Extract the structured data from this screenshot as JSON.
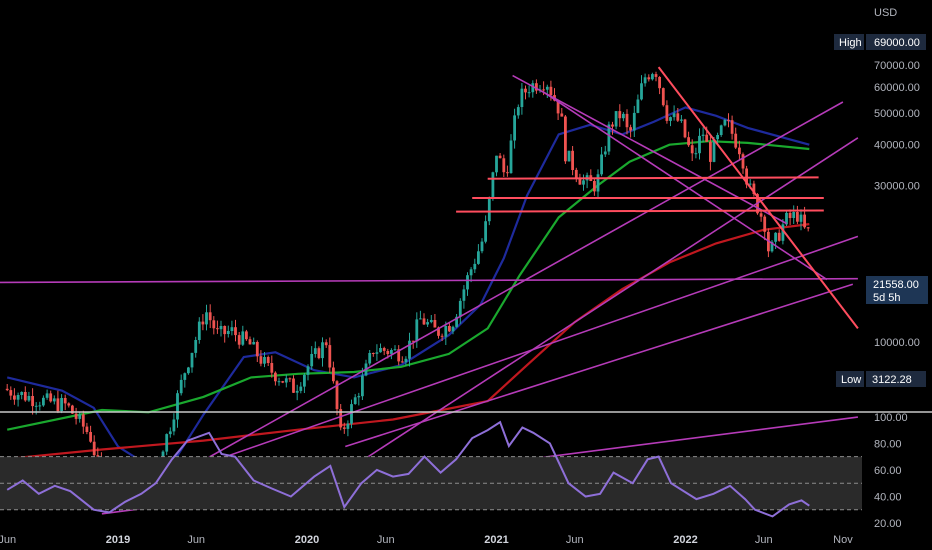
{
  "chart_data": {
    "type": "candlestick",
    "currency": "USD",
    "y_scale": "log",
    "price_ticks": [
      {
        "value": 70000,
        "label": "70000.00"
      },
      {
        "value": 60000,
        "label": "60000.00"
      },
      {
        "value": 50000,
        "label": "50000.00"
      },
      {
        "value": 40000,
        "label": "40000.00"
      },
      {
        "value": 30000,
        "label": "30000.00"
      },
      {
        "value": 10000,
        "label": "10000.00"
      }
    ],
    "markers": {
      "high": {
        "label": "High",
        "value_label": "69000.00",
        "value": 69000
      },
      "low": {
        "label": "Low",
        "value_label": "3122.28",
        "value": 3122.28
      },
      "last": {
        "value_label": "21558.00",
        "value": 21558,
        "countdown": "5d 5h"
      }
    },
    "x_ticks": [
      {
        "date": "2018-06-01",
        "label": "Jun",
        "year": false
      },
      {
        "date": "2019-01-01",
        "label": "2019",
        "year": true
      },
      {
        "date": "2019-06-01",
        "label": "Jun",
        "year": false
      },
      {
        "date": "2020-01-01",
        "label": "2020",
        "year": true
      },
      {
        "date": "2020-06-01",
        "label": "Jun",
        "year": false
      },
      {
        "date": "2021-01-01",
        "label": "2021",
        "year": true
      },
      {
        "date": "2021-06-01",
        "label": "Jun",
        "year": false
      },
      {
        "date": "2022-01-01",
        "label": "2022",
        "year": true
      },
      {
        "date": "2022-06-01",
        "label": "Jun",
        "year": false
      },
      {
        "date": "2022-11-01",
        "label": "Nov",
        "year": false
      }
    ],
    "price_anchors": [
      [
        "2018-06-01",
        7200
      ],
      [
        "2018-08-01",
        6700
      ],
      [
        "2018-10-01",
        6400
      ],
      [
        "2018-11-15",
        5200
      ],
      [
        "2018-12-15",
        3400
      ],
      [
        "2019-02-01",
        3500
      ],
      [
        "2019-03-15",
        4000
      ],
      [
        "2019-04-15",
        5300
      ],
      [
        "2019-05-15",
        8000
      ],
      [
        "2019-06-26",
        12500
      ],
      [
        "2019-07-20",
        10500
      ],
      [
        "2019-08-15",
        10800
      ],
      [
        "2019-09-20",
        9800
      ],
      [
        "2019-10-25",
        8300
      ],
      [
        "2019-12-15",
        7200
      ],
      [
        "2020-01-15",
        8700
      ],
      [
        "2020-02-15",
        10100
      ],
      [
        "2020-03-13",
        5200
      ],
      [
        "2020-04-15",
        7000
      ],
      [
        "2020-05-15",
        9500
      ],
      [
        "2020-06-15",
        9400
      ],
      [
        "2020-07-15",
        9200
      ],
      [
        "2020-08-15",
        11800
      ],
      [
        "2020-09-15",
        10700
      ],
      [
        "2020-10-15",
        11500
      ],
      [
        "2020-11-15",
        16000
      ],
      [
        "2020-12-15",
        21000
      ],
      [
        "2021-01-08",
        38000
      ],
      [
        "2021-01-25",
        32000
      ],
      [
        "2021-02-20",
        55000
      ],
      [
        "2021-03-13",
        60500
      ],
      [
        "2021-04-14",
        63000
      ],
      [
        "2021-05-12",
        50000
      ],
      [
        "2021-05-20",
        38000
      ],
      [
        "2021-06-22",
        31000
      ],
      [
        "2021-07-20",
        30000
      ],
      [
        "2021-08-15",
        46000
      ],
      [
        "2021-09-07",
        50000
      ],
      [
        "2021-09-21",
        42000
      ],
      [
        "2021-10-20",
        64000
      ],
      [
        "2021-11-10",
        69000
      ],
      [
        "2021-12-04",
        49000
      ],
      [
        "2021-12-28",
        47000
      ],
      [
        "2022-01-22",
        36000
      ],
      [
        "2022-02-10",
        44000
      ],
      [
        "2022-02-24",
        37000
      ],
      [
        "2022-03-28",
        47000
      ],
      [
        "2022-04-26",
        38000
      ],
      [
        "2022-05-09",
        30000
      ],
      [
        "2022-06-13",
        22500
      ],
      [
        "2022-06-18",
        18500
      ],
      [
        "2022-07-20",
        23500
      ],
      [
        "2022-08-13",
        24500
      ],
      [
        "2022-08-28",
        21558
      ]
    ],
    "moving_averages": [
      {
        "color": "#1e2a9c",
        "points": [
          [
            "2018-06-01",
            7800
          ],
          [
            "2018-09-15",
            7100
          ],
          [
            "2018-11-15",
            6300
          ],
          [
            "2019-01-01",
            4800
          ],
          [
            "2019-04-01",
            3900
          ],
          [
            "2019-06-15",
            6000
          ],
          [
            "2019-09-01",
            9000
          ],
          [
            "2019-11-01",
            9300
          ],
          [
            "2020-01-15",
            8200
          ],
          [
            "2020-04-01",
            7800
          ],
          [
            "2020-07-01",
            8500
          ],
          [
            "2020-10-01",
            10500
          ],
          [
            "2020-12-01",
            13000
          ],
          [
            "2021-01-15",
            18000
          ],
          [
            "2021-03-01",
            28000
          ],
          [
            "2021-05-01",
            43000
          ],
          [
            "2021-07-01",
            46000
          ],
          [
            "2021-09-01",
            43000
          ],
          [
            "2021-11-01",
            47000
          ],
          [
            "2022-01-01",
            52000
          ],
          [
            "2022-03-01",
            49000
          ],
          [
            "2022-05-01",
            45000
          ],
          [
            "2022-08-28",
            40000
          ]
        ]
      },
      {
        "color": "#1aa82e",
        "points": [
          [
            "2018-06-01",
            5400
          ],
          [
            "2018-12-01",
            6200
          ],
          [
            "2019-03-01",
            6100
          ],
          [
            "2019-06-15",
            6800
          ],
          [
            "2019-09-15",
            7800
          ],
          [
            "2019-12-15",
            8000
          ],
          [
            "2020-04-01",
            8100
          ],
          [
            "2020-07-01",
            8400
          ],
          [
            "2020-10-01",
            9200
          ],
          [
            "2020-12-15",
            11000
          ],
          [
            "2021-02-15",
            16000
          ],
          [
            "2021-05-01",
            24000
          ],
          [
            "2021-07-15",
            30000
          ],
          [
            "2021-09-15",
            35500
          ],
          [
            "2021-12-01",
            40000
          ],
          [
            "2022-02-15",
            41000
          ],
          [
            "2022-05-01",
            40500
          ],
          [
            "2022-08-28",
            38800
          ]
        ]
      },
      {
        "color": "#c0181f",
        "points": [
          [
            "2018-06-01",
            4400
          ],
          [
            "2018-12-01",
            4700
          ],
          [
            "2019-06-15",
            5000
          ],
          [
            "2019-12-15",
            5400
          ],
          [
            "2020-06-15",
            5800
          ],
          [
            "2020-12-15",
            6600
          ],
          [
            "2021-03-01",
            8500
          ],
          [
            "2021-06-01",
            11500
          ],
          [
            "2021-09-01",
            14500
          ],
          [
            "2021-12-01",
            17500
          ],
          [
            "2022-03-01",
            20000
          ],
          [
            "2022-06-01",
            22000
          ],
          [
            "2022-08-28",
            22900
          ]
        ]
      }
    ],
    "trend_lines": [
      {
        "color": "#b53bb8",
        "from": [
          "2018-05-15",
          15200
        ],
        "to": [
          "2022-11-30",
          15600
        ]
      },
      {
        "color": "#b53bb8",
        "from": [
          "2018-12-01",
          2990
        ],
        "to": [
          "2022-11-30",
          5900
        ]
      },
      {
        "color": "#b53bb8",
        "from": [
          "2018-12-01",
          3300
        ],
        "to": [
          "2022-11-30",
          21000
        ]
      },
      {
        "color": "#b53bb8",
        "from": [
          "2019-01-15",
          3200
        ],
        "to": [
          "2022-11-01",
          54000
        ]
      },
      {
        "color": "#b53bb8",
        "from": [
          "2020-02-20",
          3800
        ],
        "to": [
          "2022-11-30",
          42000
        ]
      },
      {
        "color": "#b53bb8",
        "from": [
          "2020-03-15",
          4800
        ],
        "to": [
          "2022-11-20",
          15000
        ]
      },
      {
        "color": "#b53bb8",
        "from": [
          "2021-04-01",
          58000
        ],
        "to": [
          "2022-10-01",
          15500
        ]
      },
      {
        "color": "#b53bb8",
        "from": [
          "2021-02-01",
          65000
        ],
        "to": [
          "2022-07-15",
          23000
        ]
      },
      {
        "color": "#ff4d5e",
        "from": [
          "2021-11-10",
          69000
        ],
        "to": [
          "2022-11-30",
          11000
        ]
      },
      {
        "color": "#ff4d5e",
        "from": [
          "2020-12-15",
          31500
        ],
        "to": [
          "2022-09-15",
          31800
        ]
      },
      {
        "color": "#ff4d5e",
        "from": [
          "2020-11-15",
          27500
        ],
        "to": [
          "2022-09-25",
          27500
        ]
      },
      {
        "color": "#ff4d5e",
        "from": [
          "2020-10-15",
          25000
        ],
        "to": [
          "2022-09-25",
          25200
        ]
      }
    ],
    "rsi": {
      "ticks": [
        {
          "value": 100,
          "label": "100.00"
        },
        {
          "value": 80,
          "label": "80.00"
        },
        {
          "value": 60,
          "label": "60.00"
        },
        {
          "value": 40,
          "label": "40.00"
        },
        {
          "value": 20,
          "label": "20.00"
        }
      ],
      "band_upper": 70,
      "band_mid": 50,
      "band_lower": 30,
      "color": "#8e6fd8",
      "points": [
        [
          "2018-06-01",
          45
        ],
        [
          "2018-07-01",
          52
        ],
        [
          "2018-08-01",
          42
        ],
        [
          "2018-09-01",
          48
        ],
        [
          "2018-10-01",
          44
        ],
        [
          "2018-11-15",
          30
        ],
        [
          "2018-12-15",
          28
        ],
        [
          "2019-01-15",
          36
        ],
        [
          "2019-02-15",
          42
        ],
        [
          "2019-03-15",
          50
        ],
        [
          "2019-04-15",
          68
        ],
        [
          "2019-05-15",
          82
        ],
        [
          "2019-06-26",
          88
        ],
        [
          "2019-07-20",
          72
        ],
        [
          "2019-08-15",
          70
        ],
        [
          "2019-09-20",
          52
        ],
        [
          "2019-10-25",
          46
        ],
        [
          "2019-12-01",
          40
        ],
        [
          "2020-01-15",
          55
        ],
        [
          "2020-02-15",
          63
        ],
        [
          "2020-03-13",
          32
        ],
        [
          "2020-04-15",
          50
        ],
        [
          "2020-05-15",
          60
        ],
        [
          "2020-06-15",
          55
        ],
        [
          "2020-07-15",
          57
        ],
        [
          "2020-08-15",
          70
        ],
        [
          "2020-09-15",
          58
        ],
        [
          "2020-10-15",
          68
        ],
        [
          "2020-11-15",
          84
        ],
        [
          "2020-12-15",
          90
        ],
        [
          "2021-01-08",
          96
        ],
        [
          "2021-01-25",
          78
        ],
        [
          "2021-02-20",
          92
        ],
        [
          "2021-03-13",
          88
        ],
        [
          "2021-04-14",
          80
        ],
        [
          "2021-05-20",
          50
        ],
        [
          "2021-06-22",
          40
        ],
        [
          "2021-07-20",
          42
        ],
        [
          "2021-08-15",
          58
        ],
        [
          "2021-09-21",
          50
        ],
        [
          "2021-10-20",
          68
        ],
        [
          "2021-11-10",
          70
        ],
        [
          "2021-12-04",
          50
        ],
        [
          "2022-01-22",
          38
        ],
        [
          "2022-02-24",
          42
        ],
        [
          "2022-03-28",
          48
        ],
        [
          "2022-04-26",
          38
        ],
        [
          "2022-05-15",
          30
        ],
        [
          "2022-06-18",
          25
        ],
        [
          "2022-07-20",
          34
        ],
        [
          "2022-08-13",
          37
        ],
        [
          "2022-08-28",
          33
        ]
      ]
    }
  }
}
